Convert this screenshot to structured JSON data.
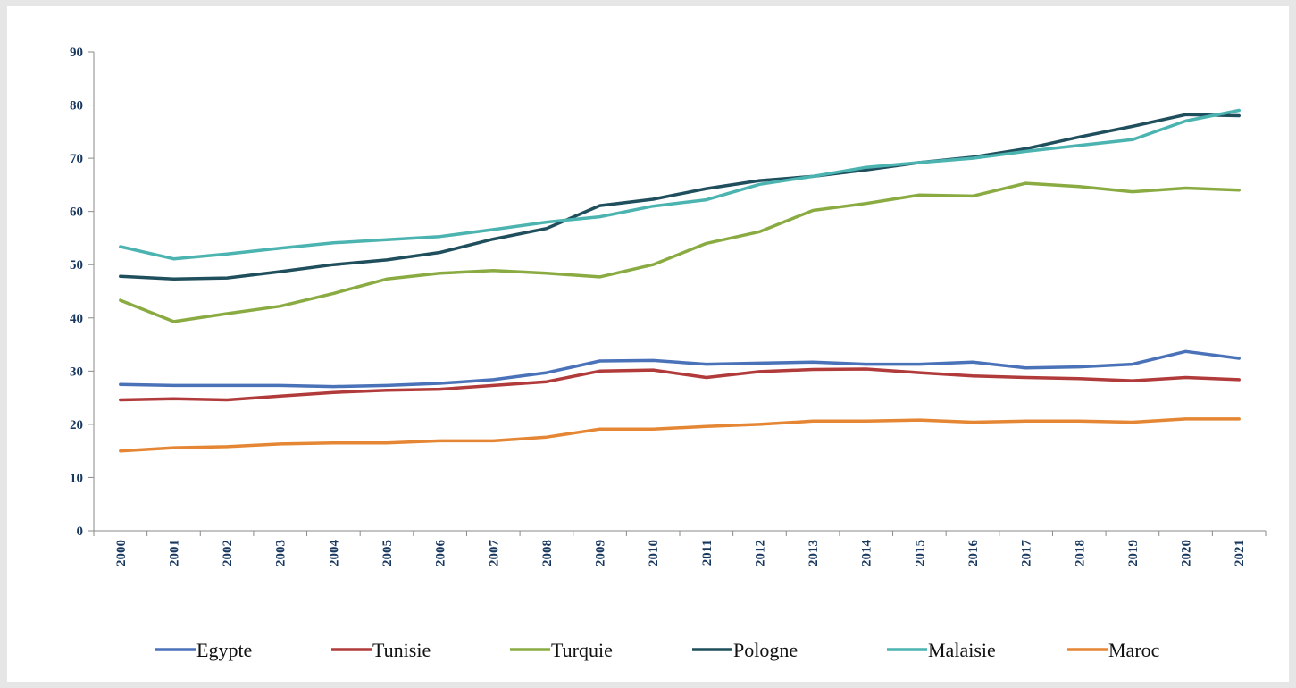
{
  "chart_data": {
    "type": "line",
    "title": "",
    "xlabel": "",
    "ylabel": "",
    "ylim": [
      0,
      90
    ],
    "yticks": [
      0,
      10,
      20,
      30,
      40,
      50,
      60,
      70,
      80,
      90
    ],
    "grid": false,
    "legend_position": "bottom",
    "x": [
      "2000",
      "2001",
      "2002",
      "2003",
      "2004",
      "2005",
      "2006",
      "2007",
      "2008",
      "2009",
      "2010",
      "2011",
      "2012",
      "2013",
      "2014",
      "2015",
      "2016",
      "2017",
      "2018",
      "2019",
      "2020",
      "2021"
    ],
    "series": [
      {
        "name": "Egypte",
        "color": "#4a72b8",
        "values": [
          27.5,
          27.3,
          27.3,
          27.3,
          27.1,
          27.3,
          27.7,
          28.4,
          29.7,
          31.9,
          32.0,
          31.3,
          31.5,
          31.7,
          31.3,
          31.3,
          31.7,
          30.6,
          30.8,
          31.3,
          33.7,
          32.4
        ]
      },
      {
        "name": "Tunisie",
        "color": "#b13a3a",
        "values": [
          24.6,
          24.8,
          24.6,
          25.3,
          26.0,
          26.4,
          26.6,
          27.3,
          28.0,
          30.0,
          30.2,
          28.8,
          29.9,
          30.3,
          30.4,
          29.7,
          29.1,
          28.8,
          28.6,
          28.2,
          28.8,
          28.4
        ]
      },
      {
        "name": "Turquie",
        "color": "#8aab42",
        "values": [
          43.3,
          39.3,
          40.8,
          42.2,
          44.6,
          47.3,
          48.4,
          48.9,
          48.4,
          47.7,
          50.0,
          54.0,
          56.2,
          60.2,
          61.5,
          63.1,
          62.9,
          65.3,
          64.7,
          63.7,
          64.4,
          64.0
        ]
      },
      {
        "name": "Pologne",
        "color": "#1f4e5c",
        "values": [
          47.8,
          47.3,
          47.5,
          48.7,
          50.0,
          50.9,
          52.3,
          54.8,
          56.8,
          61.1,
          62.3,
          64.3,
          65.8,
          66.6,
          67.8,
          69.2,
          70.2,
          71.8,
          74.0,
          76.0,
          78.2,
          78.0
        ]
      },
      {
        "name": "Malaisie",
        "color": "#4bb3b0",
        "values": [
          53.4,
          51.1,
          52.0,
          53.1,
          54.1,
          54.7,
          55.3,
          56.6,
          58.0,
          59.0,
          61.0,
          62.2,
          65.1,
          66.6,
          68.3,
          69.2,
          70.0,
          71.3,
          72.4,
          73.5,
          77.0,
          79.0
        ]
      },
      {
        "name": "Maroc",
        "color": "#e58634",
        "values": [
          15.0,
          15.6,
          15.8,
          16.3,
          16.5,
          16.5,
          16.9,
          16.9,
          17.6,
          19.1,
          19.1,
          19.6,
          20.0,
          20.6,
          20.6,
          20.8,
          20.4,
          20.6,
          20.6,
          20.4,
          21.0,
          21.0
        ]
      }
    ]
  }
}
